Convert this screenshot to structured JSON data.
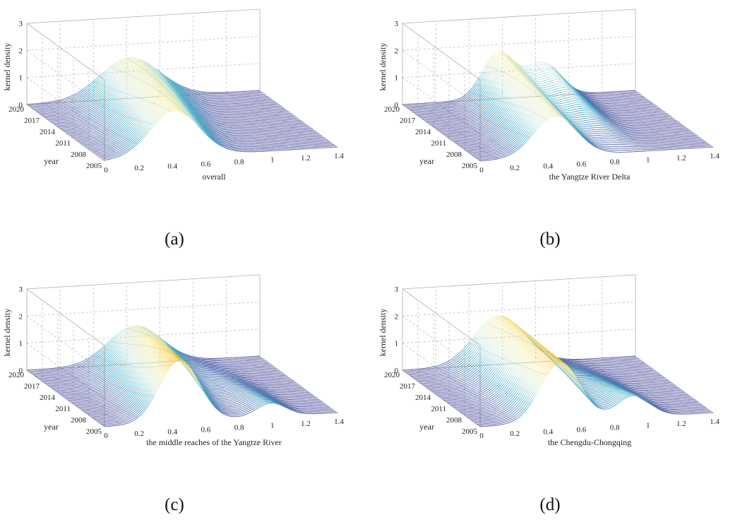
{
  "figure": {
    "zlabel": "kernel density",
    "ylabel": "year",
    "ticks": {
      "z": [
        "0",
        "1",
        "2",
        "3"
      ],
      "year": [
        "2020",
        "2017",
        "2014",
        "2011",
        "2008",
        "2005"
      ],
      "x": [
        "0",
        "0.2",
        "0.4",
        "0.6",
        "0.8",
        "1",
        "1.2",
        "1.4"
      ]
    }
  },
  "chart_data": [
    {
      "type": "surface",
      "caption": "(a)",
      "xlabel": "overall",
      "ylabel": "year",
      "zlabel": "kernel density",
      "xlim": [
        0,
        1.4
      ],
      "ylim": [
        2005,
        2020
      ],
      "zlim": [
        0,
        3
      ],
      "series": [
        {
          "name": "2005",
          "peaks": [
            {
              "mu": 0.42,
              "sigma": 0.15,
              "h": 1.7
            }
          ]
        },
        {
          "name": "2020",
          "peaks": [
            {
              "mu": 0.62,
              "sigma": 0.18,
              "h": 1.5
            }
          ]
        }
      ]
    },
    {
      "type": "surface",
      "caption": "(b)",
      "xlabel": "the Yangtze River Delta",
      "ylabel": "year",
      "zlabel": "kernel density",
      "xlim": [
        0,
        1.4
      ],
      "ylim": [
        2005,
        2020
      ],
      "zlim": [
        0,
        3
      ],
      "series": [
        {
          "name": "2005",
          "peaks": [
            {
              "mu": 0.45,
              "sigma": 0.13,
              "h": 1.5
            }
          ]
        },
        {
          "name": "2020",
          "peaks": [
            {
              "mu": 0.58,
              "sigma": 0.1,
              "h": 1.7
            },
            {
              "mu": 0.85,
              "sigma": 0.1,
              "h": 1.2
            }
          ]
        }
      ]
    },
    {
      "type": "surface",
      "caption": "(c)",
      "xlabel": "the middle reaches of the Yangtze River",
      "ylabel": "year",
      "zlabel": "kernel density",
      "xlim": [
        0,
        1.4
      ],
      "ylim": [
        2005,
        2020
      ],
      "zlim": [
        0,
        3
      ],
      "series": [
        {
          "name": "2005",
          "peaks": [
            {
              "mu": 0.45,
              "sigma": 0.12,
              "h": 2.3
            },
            {
              "mu": 1.0,
              "sigma": 0.09,
              "h": 0.5
            }
          ]
        },
        {
          "name": "2020",
          "peaks": [
            {
              "mu": 0.65,
              "sigma": 0.16,
              "h": 1.4
            }
          ]
        }
      ]
    },
    {
      "type": "surface",
      "caption": "(d)",
      "xlabel": "the Chengdu-Chongqing",
      "ylabel": "year",
      "zlabel": "kernel density",
      "xlim": [
        0,
        1.4
      ],
      "ylim": [
        2005,
        2020
      ],
      "zlim": [
        0,
        3
      ],
      "series": [
        {
          "name": "2005",
          "peaks": [
            {
              "mu": 0.48,
              "sigma": 0.12,
              "h": 2.2
            },
            {
              "mu": 0.92,
              "sigma": 0.1,
              "h": 0.8
            }
          ]
        },
        {
          "name": "2020",
          "peaks": [
            {
              "mu": 0.58,
              "sigma": 0.15,
              "h": 1.8
            }
          ]
        }
      ]
    }
  ],
  "colors": {
    "low": "#4b4b9a",
    "mid_low": "#3aa8c4",
    "mid": "#c9e8e0",
    "mid_high": "#f5eea0",
    "high": "#f5c21a",
    "grid": "#b5b5b5",
    "axis": "#444444"
  }
}
